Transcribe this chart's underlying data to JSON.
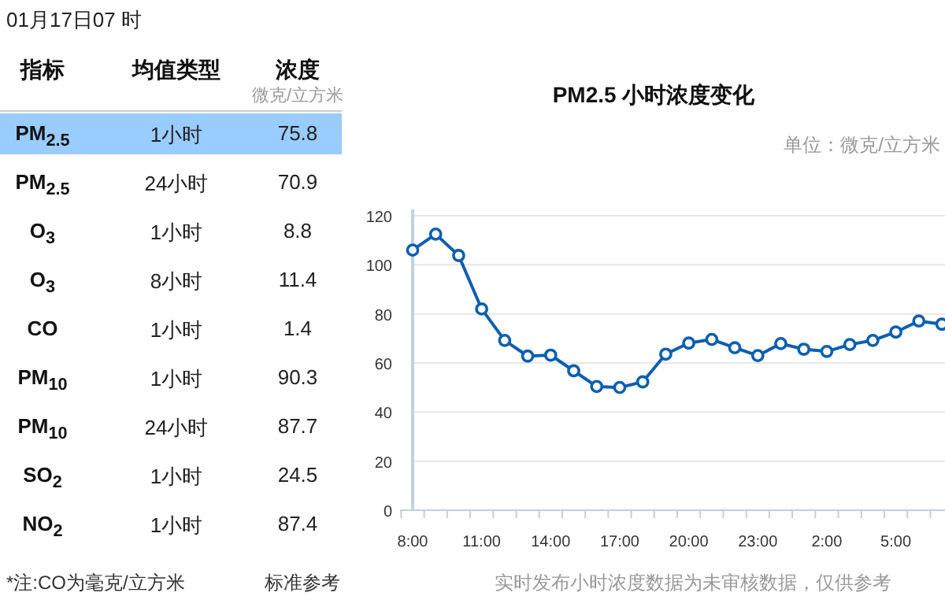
{
  "chart_data": [
    {
      "type": "other",
      "title": "01月17日07 时",
      "categories": [
        "PM$_{2.5}$",
        "PM$_{2.5}$",
        "O$_{3}$",
        "O$_{3}$",
        "CO",
        "PM$_{10}$",
        "PM$_{10}$",
        "SO$_{2}$",
        "NO$_{2}$"
      ],
      "values": [
        75.8,
        70.9,
        8.8,
        11.4,
        1.4,
        90.3,
        87.7,
        24.5,
        87.4
      ],
      "data_labels": true,
      "colors": [
        "#99ccff",
        "#ffffff",
        "#ffffff",
        "#ffffff",
        "#ffffff",
        "#ffffff",
        "#ffffff",
        "#ffffff",
        "#ffffff"
      ],
      "annotations": [
        "指标",
        "均值类型",
        "浓度",
        "微克/立方米",
        "1小时",
        "24小时",
        "1小时",
        "8小时",
        "1小时",
        "1小时",
        "24小时",
        "1小时",
        "1小时",
        "*注:CO为毫克/立方米",
        "标准参考"
      ]
    },
    {
      "type": "line",
      "title": "PM2.5 小时浓度变化",
      "categories": [
        "8:00",
        null,
        null,
        "11:00",
        null,
        null,
        "14:00",
        null,
        null,
        "17:00",
        null,
        null,
        "20:00",
        null,
        null,
        "23:00",
        null,
        null,
        "2:00",
        null,
        null,
        "5:00",
        null,
        null
      ],
      "values": [
        106,
        112.5,
        103.8,
        82,
        69.2,
        62.8,
        63.2,
        56.8,
        50.4,
        50,
        52.3,
        63.6,
        68.1,
        69.6,
        66.2,
        63,
        67.9,
        65.6,
        64.7,
        67.5,
        69.2,
        72.6,
        77.1,
        75.8
      ],
      "color": "#0d5fb0",
      "ylim": [
        0,
        120
      ],
      "yticks": [
        0,
        20,
        40,
        60,
        80,
        100,
        120
      ],
      "grid": "y",
      "marker": "circle",
      "annotations": [
        "单位：微克/立方米",
        "实时发布小时浓度数据为未审核数据，仅供参考"
      ]
    }
  ]
}
